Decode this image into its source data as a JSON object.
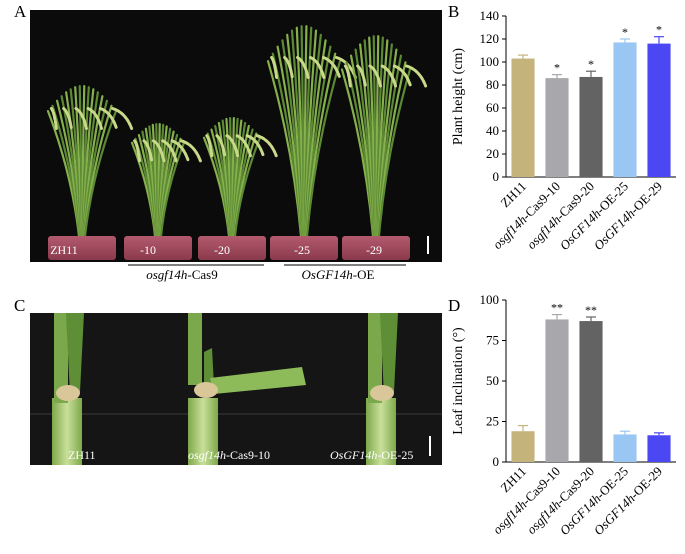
{
  "figure": {
    "panels": {
      "A": {
        "letter": "A",
        "pot_labels": [
          "ZH11",
          "-10",
          "-20",
          "-25",
          "-29"
        ],
        "group_labels": [
          {
            "prefix": "osgf14h",
            "suffix": "-Cas9",
            "italic_prefix": true
          },
          {
            "prefix": "OsGF14h",
            "suffix": "-OE",
            "italic_prefix": true
          }
        ]
      },
      "C": {
        "letter": "C",
        "labels": [
          {
            "prefix": "",
            "main": "ZH11",
            "suffix": ""
          },
          {
            "prefix": "osgf14h",
            "main": "",
            "suffix": "-Cas9-10"
          },
          {
            "prefix": "OsGF14h",
            "main": "",
            "suffix": "-OE-25"
          }
        ]
      }
    }
  },
  "chart_data": [
    {
      "panel": "B",
      "type": "bar",
      "ylabel": "Plant height (cm)",
      "ylim": [
        0,
        140
      ],
      "yticks": [
        0,
        20,
        40,
        60,
        80,
        100,
        120,
        140
      ],
      "categories": [
        {
          "italic": "",
          "plain": "ZH11"
        },
        {
          "italic": "osgf14h",
          "plain": "-Cas9-10"
        },
        {
          "italic": "osgf14h",
          "plain": "-Cas9-20"
        },
        {
          "italic": "OsGF14h",
          "plain": "-OE-25"
        },
        {
          "italic": "OsGF14h",
          "plain": "-OE-29"
        }
      ],
      "values": [
        103,
        86,
        87,
        117,
        116
      ],
      "errors": [
        3,
        3,
        5,
        3,
        6
      ],
      "significance": [
        "",
        "*",
        "*",
        "*",
        "*"
      ],
      "colors": [
        "#c4b47c",
        "#a8a8ac",
        "#636363",
        "#99c6f3",
        "#4b47f2"
      ]
    },
    {
      "panel": "D",
      "type": "bar",
      "ylabel": "Leaf inclination (°)",
      "ylim": [
        0,
        100
      ],
      "yticks": [
        0,
        25,
        50,
        75,
        100
      ],
      "categories": [
        {
          "italic": "",
          "plain": "ZH11"
        },
        {
          "italic": "osgf14h",
          "plain": "-Cas9-10"
        },
        {
          "italic": "osgf14h",
          "plain": "-Cas9-20"
        },
        {
          "italic": "OsGF14h",
          "plain": "-OE-25"
        },
        {
          "italic": "OsGF14h",
          "plain": "-OE-29"
        }
      ],
      "values": [
        19,
        88,
        87,
        17,
        16.5
      ],
      "errors": [
        3.5,
        3,
        2.5,
        2,
        1.5
      ],
      "significance": [
        "",
        "**",
        "**",
        "",
        ""
      ],
      "colors": [
        "#c4b47c",
        "#a8a8ac",
        "#636363",
        "#99c6f3",
        "#4b47f2"
      ]
    }
  ]
}
